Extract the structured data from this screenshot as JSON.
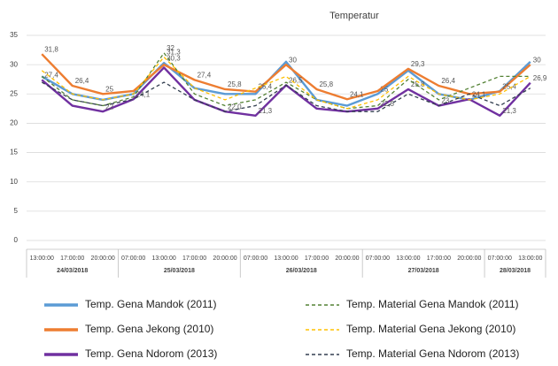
{
  "chart_data": {
    "type": "line",
    "title": "Temperatur",
    "categories": [
      "13:00:00",
      "17:00:00",
      "20:00:00",
      "07:00:00",
      "13:00:00",
      "17:00:00",
      "20:00:00",
      "07:00:00",
      "13:00:00",
      "17:00:00",
      "20:00:00",
      "07:00:00",
      "13:00:00",
      "17:00:00",
      "20:00:00",
      "07:00:00",
      "13:00:00"
    ],
    "dates": [
      "24/03/2018",
      "24/03/2018",
      "24/03/2018",
      "25/03/2018",
      "25/03/2018",
      "25/03/2018",
      "25/03/2018",
      "26/03/2018",
      "26/03/2018",
      "26/03/2018",
      "26/03/2018",
      "27/03/2018",
      "27/03/2018",
      "27/03/2018",
      "27/03/2018",
      "28/03/2018",
      "28/03/2018"
    ],
    "ylim": [
      0,
      35
    ],
    "yticks": [
      0,
      5,
      10,
      15,
      20,
      25,
      30,
      35
    ],
    "grid": true,
    "legend": "bottom",
    "series": [
      {
        "name": "Temp. Gena Mandok (2011)",
        "color": "#5b9bd5",
        "dashed": false,
        "values": [
          28,
          25,
          24,
          25,
          30.3,
          26,
          25,
          25,
          30.5,
          24,
          23,
          25,
          29,
          25,
          24,
          25.5,
          30.5
        ],
        "value_labels": [
          null,
          null,
          null,
          null,
          "30,3",
          null,
          null,
          null,
          null,
          null,
          null,
          "25",
          null,
          null,
          null,
          null,
          null
        ]
      },
      {
        "name": "Temp. Gena Jekong (2010)",
        "color": "#ed7d31",
        "dashed": false,
        "values": [
          31.8,
          26.4,
          25,
          25.5,
          30,
          27.4,
          25.8,
          25.4,
          30,
          25.8,
          24.1,
          25.5,
          29.3,
          26.4,
          25,
          25.4,
          30
        ],
        "value_labels": [
          "31,8",
          "26,4",
          "25",
          null,
          null,
          "27,4",
          "25,8",
          "25,4",
          "30",
          "25,8",
          "24,1",
          null,
          "29,3",
          "26,4",
          null,
          "25,4",
          "30"
        ]
      },
      {
        "name": "Temp. Gena Ndorom (2013)",
        "color": "#7030a0",
        "dashed": false,
        "values": [
          27.4,
          23,
          22,
          24.1,
          29.5,
          24,
          22,
          21.3,
          26.5,
          22.5,
          22,
          22.5,
          25.8,
          23,
          24.1,
          21.3,
          26.9
        ],
        "value_labels": [
          "27,4",
          null,
          "22",
          "24,1",
          null,
          null,
          "22,0",
          "21,3",
          "26,5",
          null,
          null,
          "22,5",
          "25,8",
          "23",
          "24,1",
          "21,3",
          "26,9"
        ]
      },
      {
        "name": "Temp. Material Gena Mandok (2011)",
        "color": "#548235",
        "dashed": true,
        "values": [
          28,
          24,
          23,
          24.5,
          32,
          25,
          23,
          24,
          27,
          24,
          22.5,
          23,
          27.5,
          24,
          26,
          28,
          28
        ],
        "value_labels": [
          null,
          null,
          null,
          null,
          "32",
          null,
          null,
          null,
          null,
          null,
          null,
          null,
          null,
          null,
          null,
          null,
          null
        ]
      },
      {
        "name": "Temp. Material Gena Jekong (2010)",
        "color": "#ffc000",
        "dashed": true,
        "values": [
          29,
          25,
          24,
          25,
          31.3,
          26,
          24,
          26,
          28,
          24,
          22.5,
          24,
          28,
          25,
          24,
          25,
          28
        ],
        "value_labels": [
          null,
          null,
          null,
          null,
          "31,3",
          null,
          null,
          null,
          null,
          null,
          null,
          null,
          null,
          null,
          null,
          null,
          null
        ]
      },
      {
        "name": "Temp. Material Gena Ndorom (2013)",
        "color": "#333f50",
        "dashed": true,
        "values": [
          27,
          24,
          23,
          24.1,
          27,
          24,
          22,
          23,
          26.5,
          23,
          22,
          22,
          25,
          23,
          25,
          23,
          26
        ],
        "value_labels": [
          null,
          null,
          null,
          null,
          null,
          null,
          null,
          null,
          null,
          null,
          null,
          null,
          null,
          null,
          null,
          null,
          null
        ]
      }
    ]
  }
}
